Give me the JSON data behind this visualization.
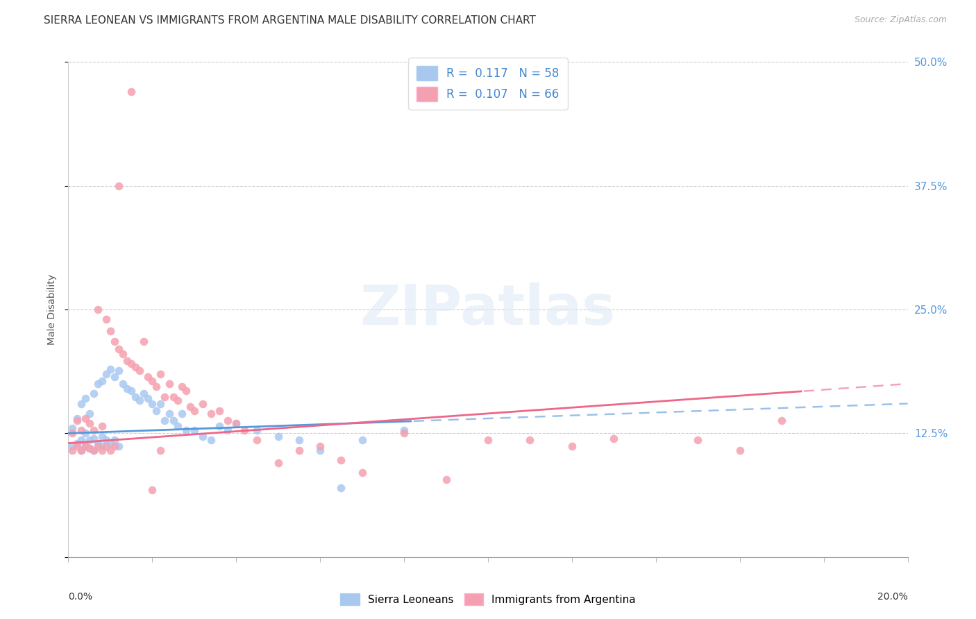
{
  "title": "SIERRA LEONEAN VS IMMIGRANTS FROM ARGENTINA MALE DISABILITY CORRELATION CHART",
  "source": "Source: ZipAtlas.com",
  "ylabel": "Male Disability",
  "watermark": "ZIPatlas",
  "xmin": 0.0,
  "xmax": 0.2,
  "ymin": 0.0,
  "ymax": 0.5,
  "yticks": [
    0.0,
    0.125,
    0.25,
    0.375,
    0.5
  ],
  "ytick_labels": [
    "",
    "12.5%",
    "25.0%",
    "37.5%",
    "50.0%"
  ],
  "xticks": [
    0.0,
    0.02,
    0.04,
    0.06,
    0.08,
    0.1,
    0.12,
    0.14,
    0.16,
    0.18,
    0.2
  ],
  "legend_label1": "Sierra Leoneans",
  "legend_label2": "Immigrants from Argentina",
  "color_blue": "#a8c8f0",
  "color_pink": "#f5a0b0",
  "color_blue_line": "#5599dd",
  "color_pink_line": "#ee6688",
  "color_axis_right": "#5599dd",
  "color_text_blue": "#4488cc",
  "background_color": "#ffffff",
  "title_fontsize": 11,
  "source_fontsize": 9,
  "R1": 0.117,
  "N1": 58,
  "R2": 0.107,
  "N2": 66,
  "sl_x": [
    0.001,
    0.001,
    0.002,
    0.002,
    0.003,
    0.003,
    0.003,
    0.004,
    0.004,
    0.004,
    0.005,
    0.005,
    0.005,
    0.006,
    0.006,
    0.006,
    0.007,
    0.007,
    0.008,
    0.008,
    0.008,
    0.009,
    0.009,
    0.01,
    0.01,
    0.011,
    0.011,
    0.012,
    0.012,
    0.013,
    0.014,
    0.015,
    0.016,
    0.017,
    0.018,
    0.019,
    0.02,
    0.021,
    0.022,
    0.023,
    0.024,
    0.025,
    0.026,
    0.027,
    0.028,
    0.03,
    0.032,
    0.034,
    0.036,
    0.038,
    0.04,
    0.045,
    0.05,
    0.055,
    0.06,
    0.065,
    0.07,
    0.08
  ],
  "sl_y": [
    0.112,
    0.13,
    0.115,
    0.14,
    0.108,
    0.118,
    0.155,
    0.112,
    0.125,
    0.16,
    0.11,
    0.118,
    0.145,
    0.108,
    0.12,
    0.165,
    0.115,
    0.175,
    0.112,
    0.122,
    0.178,
    0.118,
    0.185,
    0.115,
    0.19,
    0.118,
    0.182,
    0.112,
    0.188,
    0.175,
    0.17,
    0.168,
    0.162,
    0.158,
    0.165,
    0.16,
    0.155,
    0.148,
    0.155,
    0.138,
    0.145,
    0.138,
    0.132,
    0.145,
    0.128,
    0.128,
    0.122,
    0.118,
    0.132,
    0.128,
    0.135,
    0.128,
    0.122,
    0.118,
    0.108,
    0.07,
    0.118,
    0.128
  ],
  "arg_x": [
    0.001,
    0.001,
    0.002,
    0.002,
    0.003,
    0.003,
    0.004,
    0.004,
    0.005,
    0.005,
    0.006,
    0.006,
    0.007,
    0.007,
    0.008,
    0.008,
    0.009,
    0.009,
    0.01,
    0.01,
    0.011,
    0.011,
    0.012,
    0.013,
    0.014,
    0.015,
    0.016,
    0.017,
    0.018,
    0.019,
    0.02,
    0.021,
    0.022,
    0.023,
    0.024,
    0.025,
    0.026,
    0.027,
    0.028,
    0.029,
    0.03,
    0.032,
    0.034,
    0.036,
    0.038,
    0.04,
    0.042,
    0.045,
    0.05,
    0.055,
    0.06,
    0.065,
    0.07,
    0.08,
    0.09,
    0.1,
    0.11,
    0.12,
    0.13,
    0.15,
    0.16,
    0.17,
    0.015,
    0.02,
    0.022,
    0.012
  ],
  "arg_y": [
    0.108,
    0.125,
    0.112,
    0.138,
    0.108,
    0.128,
    0.112,
    0.14,
    0.11,
    0.135,
    0.108,
    0.128,
    0.112,
    0.25,
    0.108,
    0.132,
    0.112,
    0.24,
    0.108,
    0.228,
    0.112,
    0.218,
    0.21,
    0.205,
    0.198,
    0.195,
    0.192,
    0.188,
    0.218,
    0.182,
    0.178,
    0.172,
    0.185,
    0.162,
    0.175,
    0.162,
    0.158,
    0.172,
    0.168,
    0.152,
    0.148,
    0.155,
    0.145,
    0.148,
    0.138,
    0.135,
    0.128,
    0.118,
    0.095,
    0.108,
    0.112,
    0.098,
    0.085,
    0.125,
    0.078,
    0.118,
    0.118,
    0.112,
    0.12,
    0.118,
    0.108,
    0.138,
    0.47,
    0.068,
    0.108,
    0.375
  ]
}
